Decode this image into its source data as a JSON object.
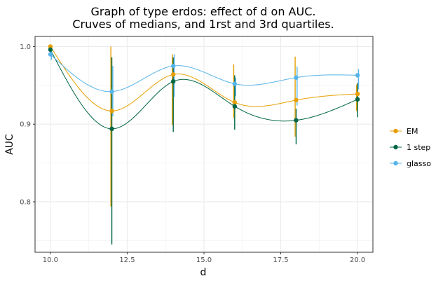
{
  "chart_data": {
    "type": "line",
    "title_line1": "Graph of type erdos: effect of d on AUC.",
    "title_line2": "Cruves of medians, and 1rst and 3rd quartiles.",
    "xlabel": "d",
    "ylabel": "AUC",
    "xlim": [
      9.5,
      20.5
    ],
    "ylim": [
      0.735,
      1.013
    ],
    "x_ticks": [
      10.0,
      12.5,
      15.0,
      17.5,
      20.0
    ],
    "x_tick_labels": [
      "10.0",
      "12.5",
      "15.0",
      "17.5",
      "20.0"
    ],
    "y_ticks": [
      0.8,
      0.9,
      1.0
    ],
    "y_tick_labels": [
      "0.8",
      "0.9",
      "1.0"
    ],
    "grid": true,
    "legend_position": "right",
    "x": [
      10,
      12,
      14,
      16,
      18,
      20
    ],
    "series": [
      {
        "name": "EM",
        "color": "#E69F00",
        "median": [
          1.0,
          0.917,
          0.964,
          0.928,
          0.931,
          0.939
        ],
        "q1": [
          0.995,
          0.794,
          0.899,
          0.908,
          0.884,
          0.917
        ],
        "q3": [
          1.0,
          1.0,
          0.99,
          0.977,
          0.987,
          0.951
        ]
      },
      {
        "name": "1 step",
        "color": "#006644",
        "median": [
          0.996,
          0.894,
          0.955,
          0.923,
          0.905,
          0.932
        ],
        "q1": [
          0.99,
          0.745,
          0.89,
          0.893,
          0.874,
          0.909
        ],
        "q3": [
          1.0,
          0.986,
          0.986,
          0.963,
          0.92,
          0.953
        ]
      },
      {
        "name": "glasso",
        "color": "#56B4E9",
        "median": [
          0.99,
          0.942,
          0.975,
          0.952,
          0.96,
          0.963
        ],
        "q1": [
          0.983,
          0.91,
          0.935,
          0.936,
          0.924,
          0.945
        ],
        "q3": [
          0.997,
          0.975,
          0.99,
          0.96,
          0.974,
          0.971
        ]
      }
    ]
  }
}
